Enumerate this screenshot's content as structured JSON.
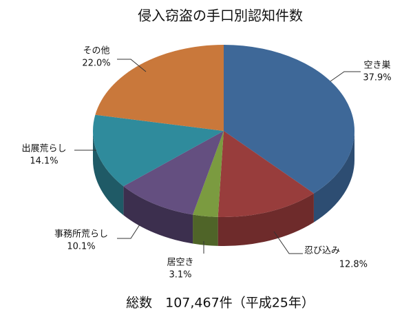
{
  "chart_data": {
    "type": "pie3d",
    "title": "侵入窃盗の手口別認知件数",
    "categories": [
      "空き巣",
      "忍び込み",
      "居空き",
      "事務所荒らし",
      "出展荒らし",
      "その他"
    ],
    "values": [
      37.9,
      12.8,
      3.1,
      10.1,
      14.1,
      22.0
    ],
    "value_labels": [
      "37.9%",
      "12.8%",
      "3.1%",
      "10.1%",
      "14.1%",
      "22.0%"
    ],
    "colors": [
      "#3e6898",
      "#983d3c",
      "#7b9b40",
      "#644f80",
      "#2f8b9c",
      "#c9783b"
    ],
    "side_colors": [
      "#2d4d72",
      "#6e2b2b",
      "#4f6428",
      "#3c2f4e",
      "#1f5a66",
      "#8a5025"
    ],
    "footer": "総数　107,467件（平成25年）"
  }
}
